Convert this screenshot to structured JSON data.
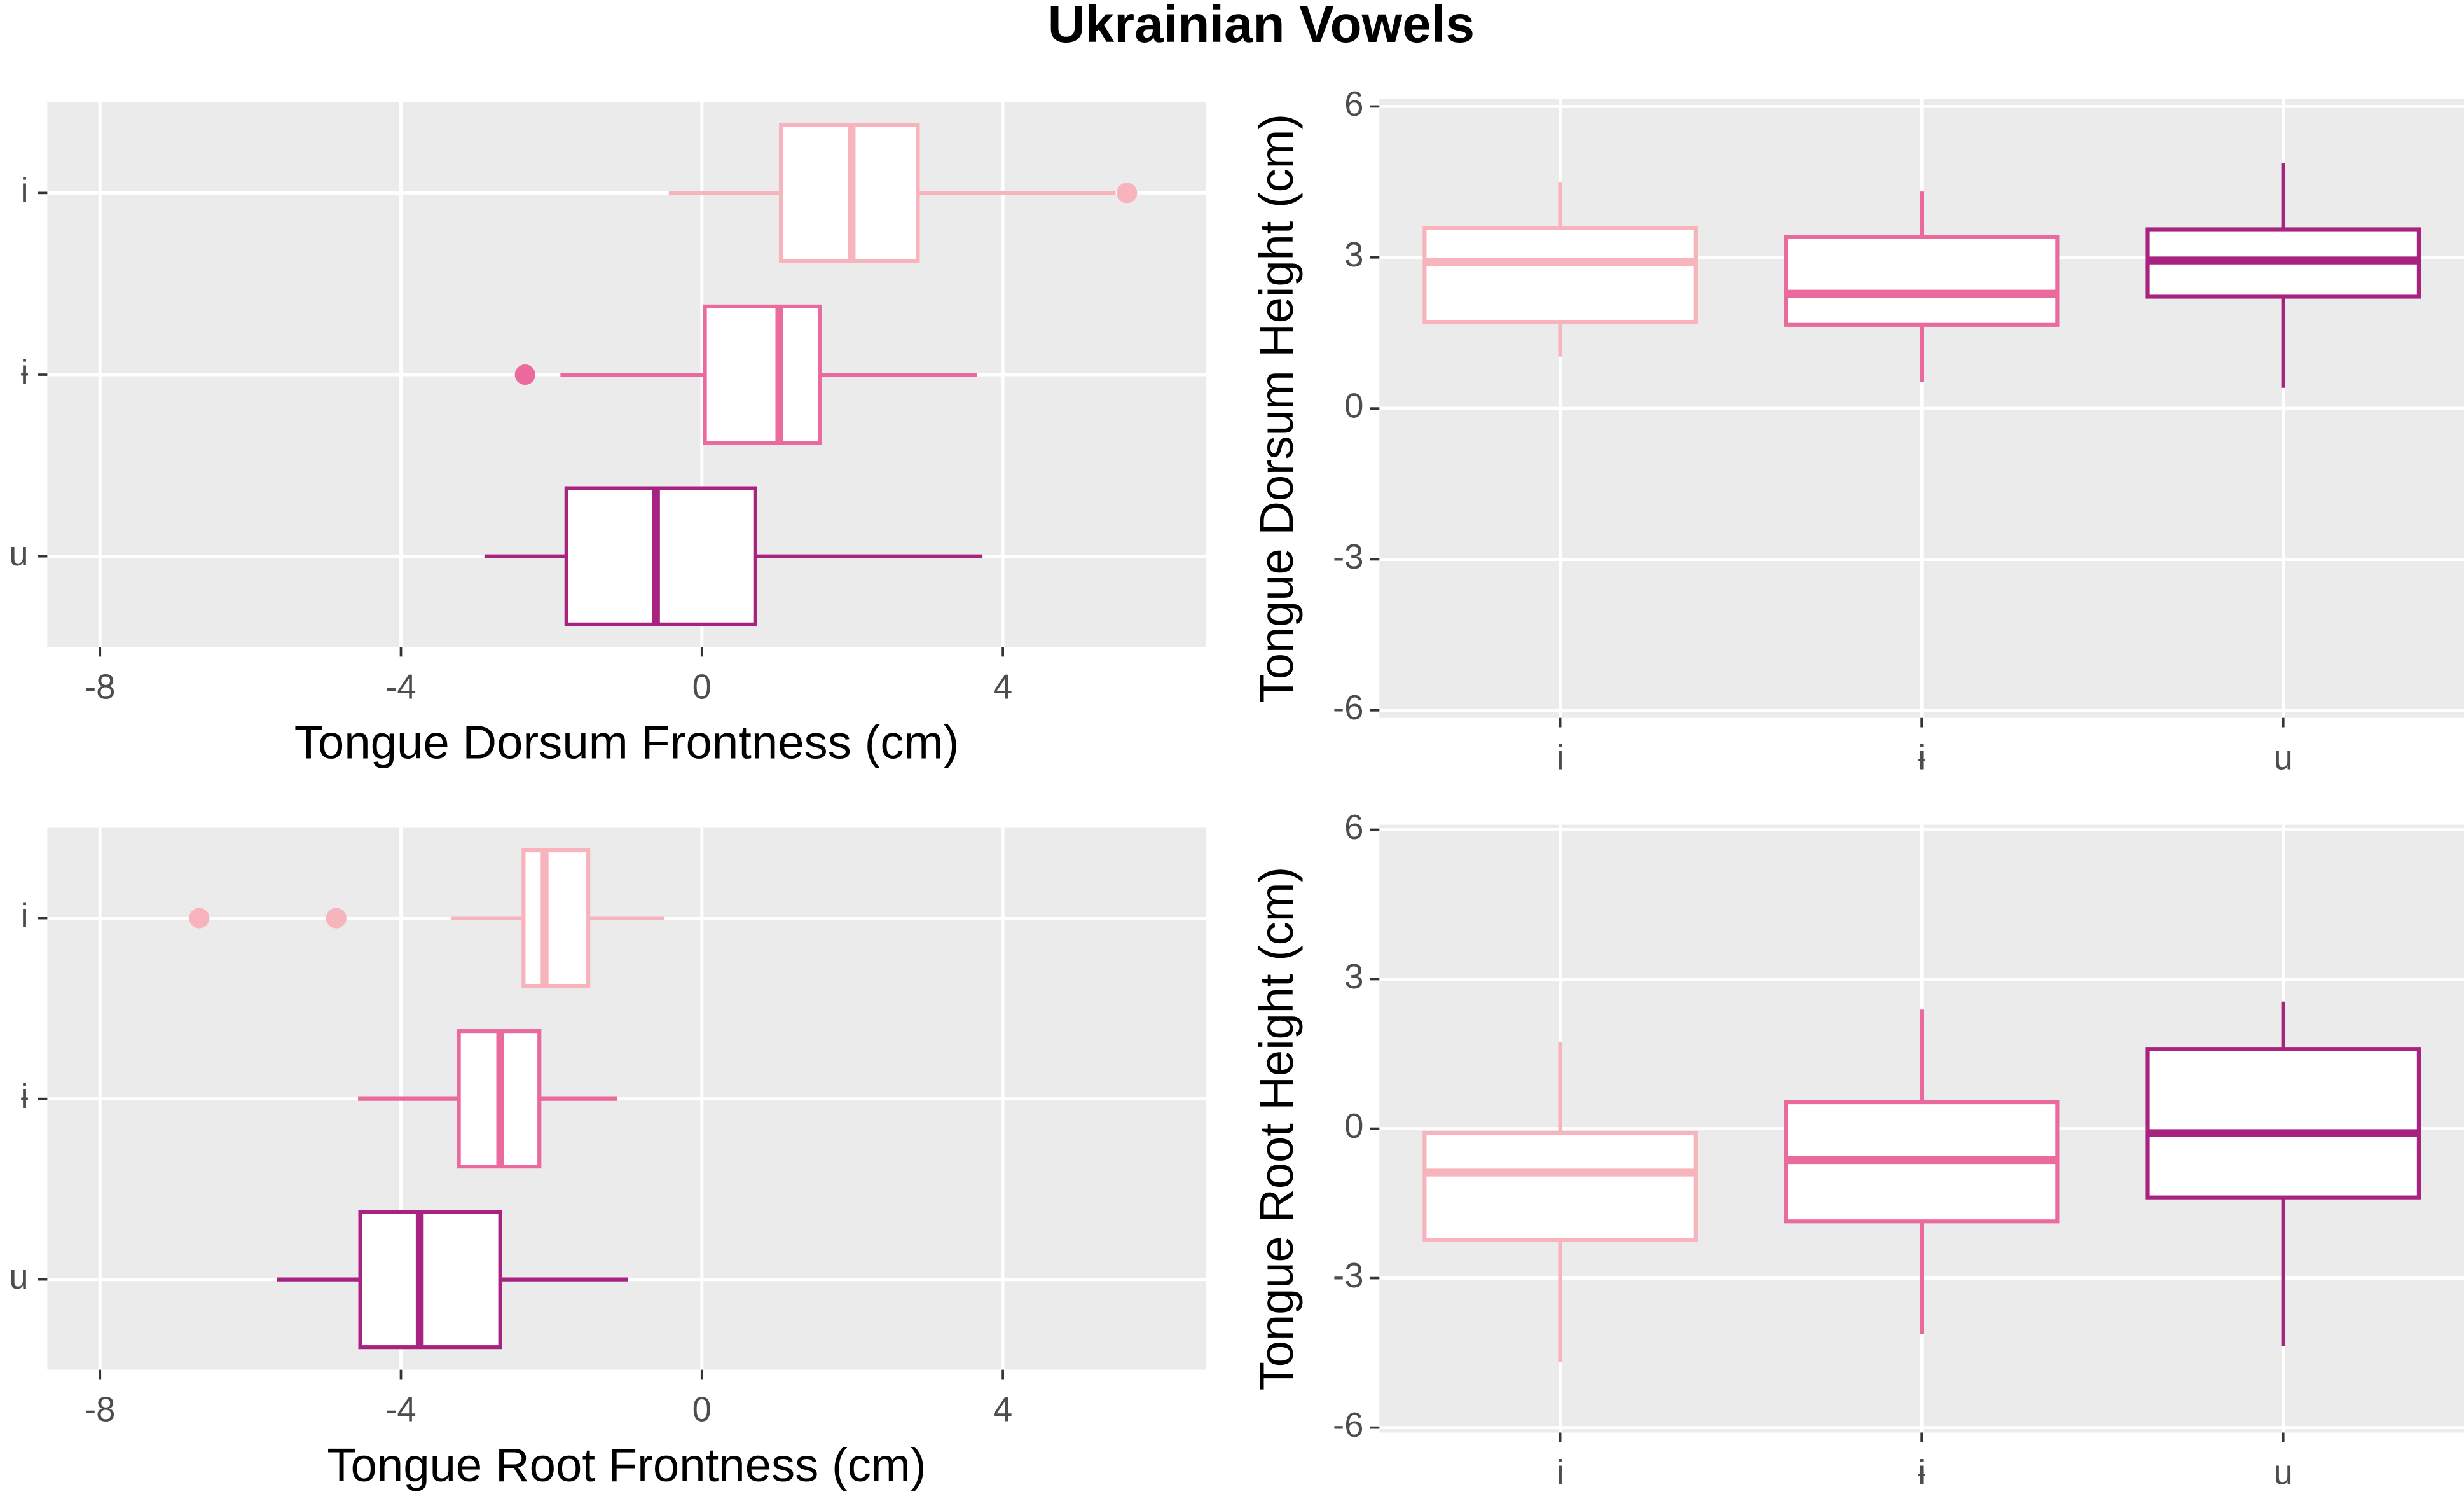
{
  "title": "Ukrainian Vowels",
  "chart_data": [
    {
      "type": "box",
      "orientation": "horizontal",
      "categories": [
        "i",
        "ɨ",
        "u"
      ],
      "colors": [
        "#f8b4bd",
        "#ea6a9e",
        "#a8237f"
      ],
      "xlabel": "Tongue Dorsum Frontness (cm)",
      "xlim": [
        -8.7,
        6.7
      ],
      "xticks": [
        -8,
        -4,
        0,
        4
      ],
      "boxes": [
        {
          "min": -0.44,
          "q1": 1.05,
          "median": 1.99,
          "q3": 2.87,
          "max": 5.5,
          "outliers": [
            5.65
          ]
        },
        {
          "min": -1.88,
          "q1": 0.04,
          "median": 1.03,
          "q3": 1.57,
          "max": 3.66,
          "outliers": [
            -2.35
          ]
        },
        {
          "min": -2.89,
          "q1": -1.8,
          "median": -0.61,
          "q3": 0.71,
          "max": 3.73
        }
      ]
    },
    {
      "type": "box",
      "orientation": "vertical",
      "categories": [
        "i",
        "ɨ",
        "u"
      ],
      "colors": [
        "#f8b4bd",
        "#ea6a9e",
        "#a8237f"
      ],
      "ylabel": "Tongue Dorsum Height (cm)",
      "ylim": [
        -6.15,
        6.15
      ],
      "yticks": [
        -6,
        -3,
        0,
        3,
        6
      ],
      "boxes": [
        {
          "min": 1.03,
          "q1": 1.72,
          "median": 2.91,
          "q3": 3.59,
          "max": 4.5
        },
        {
          "min": 0.53,
          "q1": 1.66,
          "median": 2.28,
          "q3": 3.41,
          "max": 4.31
        },
        {
          "min": 0.41,
          "q1": 2.22,
          "median": 2.94,
          "q3": 3.56,
          "max": 4.88
        }
      ]
    },
    {
      "type": "box",
      "orientation": "horizontal",
      "categories": [
        "i",
        "ɨ",
        "u"
      ],
      "colors": [
        "#f8b4bd",
        "#ea6a9e",
        "#a8237f"
      ],
      "xlabel": "Tongue Root Frontness (cm)",
      "xlim": [
        -8.7,
        6.7
      ],
      "xticks": [
        -8,
        -4,
        0,
        4
      ],
      "boxes": [
        {
          "min": -3.33,
          "q1": -2.37,
          "median": -2.09,
          "q3": -1.51,
          "max": -0.5,
          "outliers": [
            -6.68,
            -4.86
          ]
        },
        {
          "min": -4.57,
          "q1": -3.23,
          "median": -2.68,
          "q3": -2.16,
          "max": -1.13
        },
        {
          "min": -5.65,
          "q1": -4.54,
          "median": -3.75,
          "q3": -2.68,
          "max": -0.98
        }
      ]
    },
    {
      "type": "box",
      "orientation": "vertical",
      "categories": [
        "i",
        "ɨ",
        "u"
      ],
      "colors": [
        "#f8b4bd",
        "#ea6a9e",
        "#a8237f"
      ],
      "ylabel": "Tongue Root Height (cm)",
      "ylim": [
        -6.1,
        6.1
      ],
      "yticks": [
        -6,
        -3,
        0,
        3,
        6
      ],
      "boxes": [
        {
          "min": -4.68,
          "q1": -2.23,
          "median": -0.88,
          "q3": -0.09,
          "max": 1.73
        },
        {
          "min": -4.12,
          "q1": -1.86,
          "median": -0.63,
          "q3": 0.53,
          "max": 2.39
        },
        {
          "min": -4.37,
          "q1": -1.38,
          "median": -0.09,
          "q3": 1.6,
          "max": 2.55
        }
      ]
    }
  ]
}
